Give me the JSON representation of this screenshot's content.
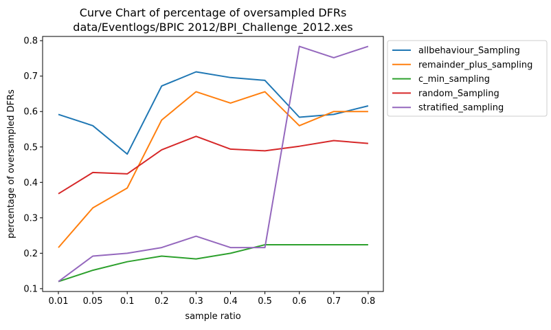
{
  "chart_data": {
    "type": "line",
    "title_line1": "Curve Chart of percentage of oversampled DFRs",
    "title_line2": "data/Eventlogs/BPIC 2012/BPI_Challenge_2012.xes",
    "xlabel": "sample ratio",
    "ylabel": "percentage of oversampled DFRs",
    "categories": [
      "0.01",
      "0.05",
      "0.1",
      "0.2",
      "0.3",
      "0.4",
      "0.5",
      "0.6",
      "0.7",
      "0.8"
    ],
    "ylim": [
      0.092,
      0.812
    ],
    "yticks": [
      "0.1",
      "0.2",
      "0.3",
      "0.4",
      "0.5",
      "0.6",
      "0.7",
      "0.8"
    ],
    "grid": false,
    "legend_position": "outside upper right",
    "series": [
      {
        "name": "allbehaviour_Sampling",
        "color": "#1f77b4",
        "values": [
          0.592,
          0.56,
          0.48,
          0.672,
          0.712,
          0.696,
          0.688,
          0.584,
          0.592,
          0.616
        ]
      },
      {
        "name": "remainder_plus_sampling",
        "color": "#ff7f0e",
        "values": [
          0.216,
          0.328,
          0.384,
          0.576,
          0.656,
          0.624,
          0.656,
          0.56,
          0.6,
          0.6
        ]
      },
      {
        "name": "c_min_sampling",
        "color": "#2ca02c",
        "values": [
          0.12,
          0.152,
          0.176,
          0.192,
          0.184,
          0.2,
          0.224,
          0.224,
          0.224,
          0.224
        ]
      },
      {
        "name": "random_Sampling",
        "color": "#d62728",
        "values": [
          0.368,
          0.428,
          0.424,
          0.492,
          0.53,
          0.494,
          0.489,
          0.502,
          0.518,
          0.51
        ]
      },
      {
        "name": "stratified_sampling",
        "color": "#9467bd",
        "values": [
          0.12,
          0.192,
          0.2,
          0.216,
          0.248,
          0.216,
          0.216,
          0.784,
          0.752,
          0.784
        ]
      }
    ]
  }
}
